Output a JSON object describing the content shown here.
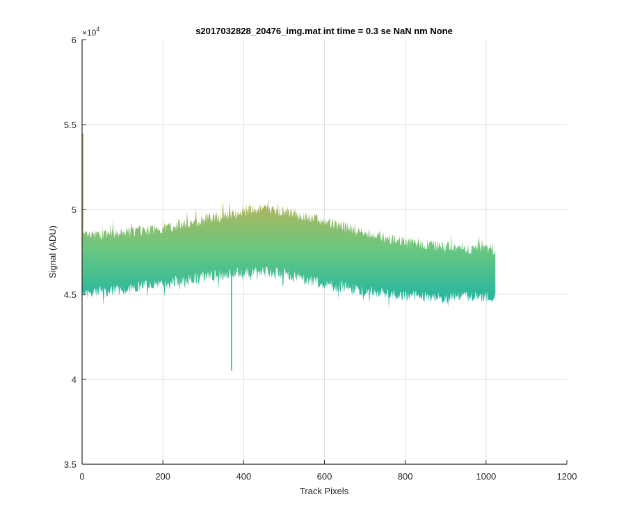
{
  "chart_data": {
    "type": "line",
    "title": "s2017032828_20476_img.mat int time = 0.3 se  NaN nm None",
    "xlabel": "Track Pixels",
    "ylabel": "Signal (ADU)",
    "xlim": [
      0,
      1200
    ],
    "ylim": [
      35000,
      60000
    ],
    "xticks": [
      0,
      200,
      400,
      600,
      800,
      1000,
      1200
    ],
    "yticks": [
      35000,
      40000,
      45000,
      50000,
      55000,
      60000
    ],
    "xtick_labels": [
      "0",
      "200",
      "400",
      "600",
      "800",
      "1000",
      "1200"
    ],
    "ytick_labels": [
      "3.5",
      "4",
      "4.5",
      "5",
      "5.5",
      "6"
    ],
    "y_exponent_label": "×10",
    "y_exponent_power": "4",
    "grid": true,
    "band_profile": {
      "x": [
        0,
        100,
        200,
        300,
        400,
        450,
        500,
        600,
        700,
        800,
        900,
        1024
      ],
      "upper": [
        48400,
        48600,
        48900,
        49400,
        49900,
        50000,
        49900,
        49300,
        48600,
        48100,
        47800,
        47600
      ],
      "lower": [
        45000,
        45300,
        45700,
        46000,
        46300,
        46300,
        46200,
        45600,
        45200,
        44900,
        44800,
        44900
      ]
    },
    "spikes": [
      {
        "x": 2,
        "y": 54500
      },
      {
        "x": 370,
        "y": 40500
      }
    ],
    "colors": {
      "band_top": "#b8b35a",
      "band_mid": "#6ac77f",
      "band_bottom": "#1ab3a6",
      "grid": "#dfdfdf",
      "axis": "#262626"
    }
  }
}
